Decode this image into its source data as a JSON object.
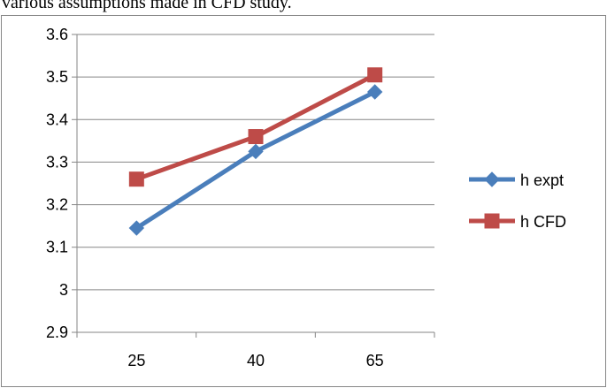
{
  "document": {
    "visible_text": "various assumptions made in CFD study."
  },
  "chart_data": {
    "type": "line",
    "title": "",
    "xlabel": "",
    "ylabel": "",
    "categories": [
      "25",
      "40",
      "65"
    ],
    "ylim": [
      2.9,
      3.6
    ],
    "y_ticks": [
      "2.9",
      "3",
      "3.1",
      "3.2",
      "3.3",
      "3.4",
      "3.5",
      "3.6"
    ],
    "grid": true,
    "legend_position": "right",
    "series": [
      {
        "name": "h expt",
        "values": [
          3.145,
          3.325,
          3.465
        ],
        "color": "#4a7ebb",
        "marker": "diamond"
      },
      {
        "name": "h CFD",
        "values": [
          3.26,
          3.36,
          3.505
        ],
        "color": "#be4b48",
        "marker": "square"
      }
    ]
  }
}
